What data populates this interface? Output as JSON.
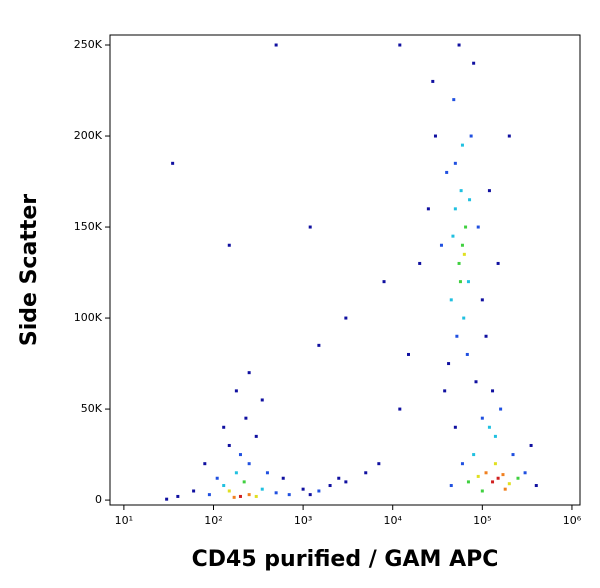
{
  "chart_data": {
    "type": "scatter",
    "x_label": "CD45 purified / GAM APC",
    "y_label": "Side Scatter",
    "xscale": "log",
    "xlim": [
      7,
      1230000
    ],
    "xticks": [
      {
        "value": 10,
        "label": "10¹"
      },
      {
        "value": 100,
        "label": "10²"
      },
      {
        "value": 1000,
        "label": "10³"
      },
      {
        "value": 10000,
        "label": "10⁴"
      },
      {
        "value": 100000,
        "label": "10⁵"
      },
      {
        "value": 1000000,
        "label": "10⁶"
      }
    ],
    "ylim": [
      -2700,
      255500
    ],
    "yticks": [
      0,
      {
        "value": 50000,
        "label": "50K"
      },
      {
        "value": 100000,
        "label": "100K"
      },
      {
        "value": 150000,
        "label": "150K"
      },
      {
        "value": 200000,
        "label": "200K"
      },
      {
        "value": 250000,
        "label": "250K"
      }
    ],
    "x": [
      60000,
      55000,
      65000,
      50000,
      70000,
      45000,
      58000,
      62000,
      40000,
      75000,
      52000,
      68000,
      35000,
      90000,
      48000,
      80000,
      30000,
      42000,
      100000,
      25000,
      120000,
      55000,
      38000,
      85000,
      60000,
      57000,
      63000,
      47000,
      72000,
      50000,
      20000,
      150000,
      15000,
      200000,
      110000,
      28000,
      12000,
      150000,
      130000,
      170000,
      110000,
      200000,
      90000,
      140000,
      70000,
      250000,
      120000,
      140000,
      100000,
      160000,
      80000,
      220000,
      300000,
      60000,
      180000,
      100000,
      350000,
      50000,
      130000,
      400000,
      45000,
      200,
      170,
      250,
      150,
      300,
      220,
      180,
      130,
      350,
      200,
      250,
      110,
      150,
      400,
      90,
      300,
      130,
      60,
      500,
      230,
      180,
      40,
      80,
      350,
      250,
      30,
      600,
      700,
      1000,
      1500,
      2000,
      3000,
      1200,
      5000,
      7000,
      2500,
      1500,
      3000,
      8000,
      12000,
      35,
      150,
      1200,
      500
    ],
    "y": [
      140000,
      130000,
      150000,
      160000,
      120000,
      110000,
      170000,
      100000,
      180000,
      200000,
      90000,
      80000,
      140000,
      150000,
      220000,
      240000,
      200000,
      75000,
      110000,
      160000,
      170000,
      250000,
      60000,
      65000,
      195000,
      120000,
      135000,
      145000,
      165000,
      185000,
      130000,
      130000,
      80000,
      200000,
      90000,
      230000,
      250000,
      12000,
      10000,
      14000,
      15000,
      9000,
      13000,
      20000,
      10000,
      12000,
      40000,
      35000,
      45000,
      50000,
      25000,
      25000,
      15000,
      20000,
      6000,
      5000,
      30000,
      40000,
      60000,
      8000,
      8000,
      2000,
      1500,
      3000,
      5000,
      2000,
      10000,
      15000,
      8000,
      6000,
      25000,
      20000,
      12000,
      30000,
      15000,
      3000,
      35000,
      40000,
      5000,
      4000,
      45000,
      60000,
      2000,
      20000,
      55000,
      70000,
      500,
      12000,
      3000,
      6000,
      5000,
      8000,
      10000,
      3000,
      15000,
      20000,
      12000,
      85000,
      100000,
      120000,
      50000,
      185000,
      140000,
      150000,
      250000
    ],
    "colors": [
      "#40d040",
      "#40d040",
      "#40d040",
      "#20c0e0",
      "#20c0e0",
      "#20c0e0",
      "#20c0e0",
      "#20c0e0",
      "#2050e0",
      "#2050e0",
      "#2050e0",
      "#2050e0",
      "#2050e0",
      "#2050e0",
      "#2050e0",
      "#1010a0",
      "#1010a0",
      "#1010a0",
      "#1010a0",
      "#1010a0",
      "#1010a0",
      "#1010a0",
      "#1010a0",
      "#1010a0",
      "#20c0e0",
      "#40d040",
      "#e0e020",
      "#20c0e0",
      "#20c0e0",
      "#2050e0",
      "#1010a0",
      "#1010a0",
      "#1010a0",
      "#1010a0",
      "#1010a0",
      "#1010a0",
      "#1010a0",
      "#d02020",
      "#d02020",
      "#f08020",
      "#f08020",
      "#e0e020",
      "#e0e020",
      "#e0e020",
      "#40d040",
      "#40d040",
      "#20c0e0",
      "#20c0e0",
      "#2050e0",
      "#2050e0",
      "#20c0e0",
      "#2050e0",
      "#2050e0",
      "#2050e0",
      "#f08020",
      "#40d040",
      "#1010a0",
      "#1010a0",
      "#1010a0",
      "#1010a0",
      "#2050e0",
      "#d02020",
      "#f08020",
      "#f08020",
      "#e0e020",
      "#e0e020",
      "#40d040",
      "#20c0e0",
      "#20c0e0",
      "#20c0e0",
      "#2050e0",
      "#2050e0",
      "#2050e0",
      "#1010a0",
      "#2050e0",
      "#2050e0",
      "#1010a0",
      "#1010a0",
      "#1010a0",
      "#2050e0",
      "#1010a0",
      "#1010a0",
      "#1010a0",
      "#1010a0",
      "#1010a0",
      "#1010a0",
      "#1010a0",
      "#1010a0",
      "#2050e0",
      "#1010a0",
      "#2050e0",
      "#1010a0",
      "#1010a0",
      "#1010a0",
      "#1010a0",
      "#1010a0",
      "#1010a0",
      "#1010a0",
      "#1010a0",
      "#1010a0",
      "#1010a0",
      "#1010a0",
      "#1010a0",
      "#1010a0",
      "#1010a0"
    ]
  }
}
